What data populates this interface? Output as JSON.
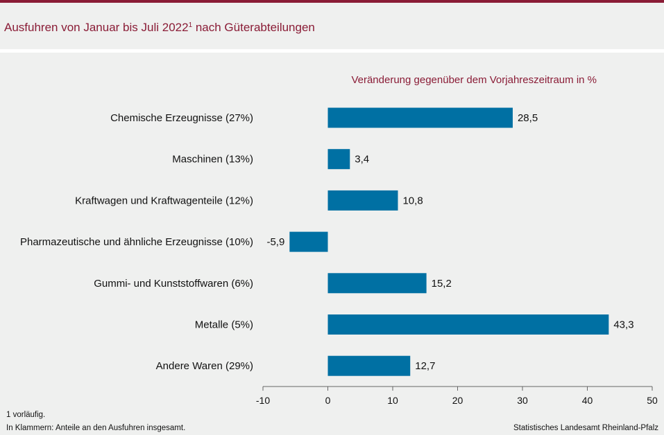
{
  "header": {
    "title": "Ausfuhren von Januar bis Juli 2022",
    "title_footnote_mark": "1",
    "title_suffix": " nach Güterabteilungen"
  },
  "footer": {
    "footnote_1": "1 vorläufig.",
    "footnote_2": "In Klammern: Anteile an den Ausfuhren insgesamt.",
    "source": "Statistisches Landesamt Rheinland-Pfalz"
  },
  "colors": {
    "accent": "#8a1c36",
    "bar": "#0070a3",
    "background": "#eff0ef"
  },
  "chart_data": {
    "type": "bar",
    "orientation": "horizontal",
    "title": "Ausfuhren von Januar bis Juli 2022 nach Güterabteilungen",
    "subtitle": "Veränderung gegenüber dem Vorjahreszeitraum in %",
    "categories": [
      "Chemische Erzeugnisse (27%)",
      "Maschinen (13%)",
      "Kraftwagen und Kraftwagenteile (12%)",
      "Pharmazeutische und ähnliche Erzeugnisse (10%)",
      "Gummi- und Kunststoffwaren (6%)",
      "Metalle (5%)",
      "Andere Waren (29%)"
    ],
    "values": [
      28.5,
      3.4,
      10.8,
      -5.9,
      15.2,
      43.3,
      12.7
    ],
    "value_labels": [
      "28,5",
      "3,4",
      "10,8",
      "-5,9",
      "15,2",
      "43,3",
      "12,7"
    ],
    "xlim": [
      -10,
      50
    ],
    "xticks": [
      -10,
      0,
      10,
      20,
      30,
      40,
      50
    ],
    "xtick_labels": [
      "-10",
      "0",
      "10",
      "20",
      "30",
      "40",
      "50"
    ],
    "grid": false,
    "legend": "none"
  }
}
